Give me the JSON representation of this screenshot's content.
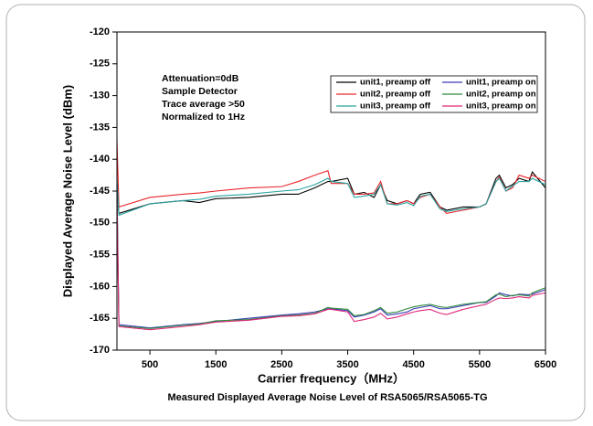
{
  "chart_data": {
    "type": "line",
    "title": "Measured Displayed Average Noise Level of RSA5065/RSA5065-TG",
    "x_label": "Carrier frequency（MHz）",
    "y_label": "Displayed Average Noise Level (dBm)",
    "annotations": [
      "Attenuation=0dB",
      "Sample Detector",
      "Trace average >50",
      "Normalized to 1Hz"
    ],
    "legend": "upper right",
    "xlim": [
      0,
      6500
    ],
    "ylim": [
      -170,
      -120
    ],
    "xticks": [
      500,
      1500,
      2500,
      3500,
      4500,
      5500,
      6500
    ],
    "yticks": [
      -170,
      -165,
      -160,
      -155,
      -150,
      -145,
      -140,
      -135,
      -130,
      -125,
      -120
    ],
    "x": [
      0,
      30,
      500,
      1000,
      1250,
      1500,
      2000,
      2500,
      2750,
      3000,
      3200,
      3250,
      3500,
      3600,
      3750,
      3900,
      4000,
      4100,
      4250,
      4400,
      4500,
      4600,
      4750,
      4900,
      5000,
      5250,
      5500,
      5600,
      5750,
      5800,
      5900,
      6000,
      6100,
      6250,
      6300,
      6500
    ],
    "series": [
      {
        "name": "unit1, preamp off",
        "color": "#000000",
        "values": [
          -145,
          -148.5,
          -147,
          -146.5,
          -146.8,
          -146.2,
          -146,
          -145.5,
          -145.5,
          -144.5,
          -143.5,
          -143.5,
          -143,
          -145.5,
          -145.2,
          -146,
          -144,
          -146.5,
          -147,
          -146.5,
          -147,
          -145.5,
          -145.2,
          -147.5,
          -148,
          -147.5,
          -147.5,
          -147,
          -143,
          -142.5,
          -144.5,
          -144,
          -143,
          -143.5,
          -142,
          -144.5
        ]
      },
      {
        "name": "unit2, preamp off",
        "color": "#e8262b",
        "values": [
          -137,
          -147.5,
          -146,
          -145.5,
          -145.3,
          -145,
          -144.5,
          -144.3,
          -143.5,
          -142.5,
          -141.8,
          -143.8,
          -143.8,
          -145.5,
          -145.5,
          -145.3,
          -143.5,
          -147,
          -147,
          -146.5,
          -147,
          -146,
          -145.5,
          -147.5,
          -148.5,
          -148,
          -147.5,
          -147,
          -143.5,
          -142.8,
          -145,
          -144.5,
          -142.5,
          -143,
          -142.5,
          -143.5
        ]
      },
      {
        "name": "unit3, preamp off",
        "color": "#2aa3a0",
        "values": [
          -143,
          -148.8,
          -147,
          -146.5,
          -146.3,
          -145.8,
          -145.5,
          -145,
          -144.8,
          -144,
          -143,
          -143.5,
          -143.8,
          -146,
          -145.8,
          -145.5,
          -144,
          -147,
          -147.2,
          -146.8,
          -147.3,
          -145.8,
          -145.5,
          -147.8,
          -148.2,
          -147.8,
          -147.5,
          -147,
          -143.5,
          -143,
          -145,
          -144.2,
          -143.5,
          -143.5,
          -143,
          -144
        ]
      },
      {
        "name": "unit1, preamp on",
        "color": "#3a3ab8",
        "values": [
          -144,
          -166,
          -166.5,
          -166,
          -165.8,
          -165.5,
          -165,
          -164.5,
          -164.3,
          -164,
          -163.5,
          -163.5,
          -163.8,
          -164.8,
          -164.5,
          -164,
          -163.5,
          -164.5,
          -164.3,
          -164,
          -163.5,
          -163.3,
          -163,
          -163.5,
          -163.5,
          -163,
          -162.5,
          -162.5,
          -161.5,
          -161,
          -161.3,
          -161.5,
          -161.2,
          -161.3,
          -161.2,
          -160.5
        ]
      },
      {
        "name": "unit2, preamp on",
        "color": "#2e8b3a",
        "values": [
          -145,
          -166.2,
          -166.6,
          -166.1,
          -165.9,
          -165.4,
          -165.2,
          -164.6,
          -164.5,
          -164.2,
          -163.3,
          -163.4,
          -163.6,
          -164.6,
          -164.4,
          -163.8,
          -163.3,
          -164.2,
          -164,
          -163.5,
          -163.2,
          -163,
          -162.8,
          -163.2,
          -163.3,
          -162.8,
          -162.5,
          -162.4,
          -161.3,
          -161.2,
          -161.6,
          -161.4,
          -161.3,
          -161.5,
          -161,
          -160.2
        ]
      },
      {
        "name": "unit3, preamp on",
        "color": "#e0287a",
        "values": [
          -146,
          -166.3,
          -166.8,
          -166.3,
          -166,
          -165.6,
          -165.3,
          -164.7,
          -164.6,
          -164.3,
          -163.6,
          -163.6,
          -164,
          -165.5,
          -165.2,
          -164.8,
          -164.2,
          -165.1,
          -164.8,
          -164.3,
          -164,
          -163.8,
          -163.6,
          -164.2,
          -164.4,
          -163.6,
          -163,
          -162.8,
          -162,
          -161.8,
          -161.9,
          -161.8,
          -161.6,
          -161.8,
          -161.4,
          -161
        ]
      }
    ]
  }
}
